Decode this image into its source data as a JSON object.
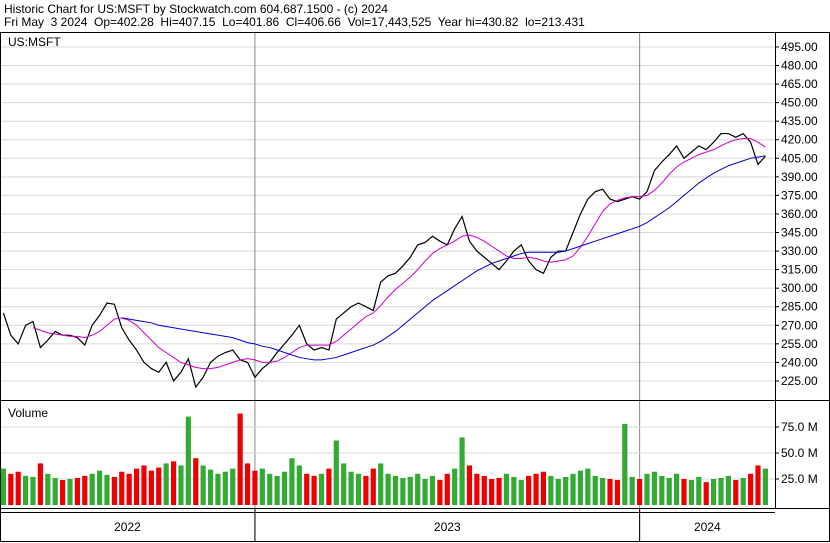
{
  "chart_data": [
    {
      "type": "line",
      "title": "Historic Chart for US:MSFT by Stockwatch.com 604.687.1500 - (c) 2024",
      "subtitle": "Fri May  3 2024  Op=402.28  Hi=407.15  Lo=401.86  Cl=406.66  Vol=17,443,525  Year hi=430.82  lo=213.431",
      "label": "US:MSFT",
      "x": [
        0,
        1,
        2,
        3,
        4,
        5,
        6,
        7,
        8,
        9,
        10,
        11,
        12,
        13,
        14,
        15,
        16,
        17,
        18,
        19,
        20,
        21,
        22,
        23,
        24,
        25,
        26,
        27,
        28,
        29,
        30,
        31,
        32,
        33,
        34,
        35,
        36,
        37,
        38,
        39,
        40,
        41,
        42,
        43,
        44,
        45,
        46,
        47,
        48,
        49,
        50,
        51,
        52,
        53,
        54,
        55,
        56,
        57,
        58,
        59,
        60,
        61,
        62,
        63,
        64,
        65,
        66,
        67,
        68,
        69,
        70,
        71,
        72,
        73,
        74,
        75,
        76,
        77,
        78,
        79,
        80,
        81,
        82,
        83,
        84,
        85,
        86,
        87,
        88,
        89,
        90,
        91,
        92,
        93,
        94,
        95,
        96,
        97,
        98,
        99,
        100,
        101,
        102,
        103
      ],
      "xlim": [
        -0.46,
        104.3
      ],
      "ylim": [
        209.6,
        506.3
      ],
      "yticks": [
        {
          "value": 225,
          "label": "225.00"
        },
        {
          "value": 240,
          "label": "240.00"
        },
        {
          "value": 255,
          "label": "255.00"
        },
        {
          "value": 270,
          "label": "270.00"
        },
        {
          "value": 285,
          "label": "285.00"
        },
        {
          "value": 300,
          "label": "300.00"
        },
        {
          "value": 315,
          "label": "315.00"
        },
        {
          "value": 330,
          "label": "330.00"
        },
        {
          "value": 345,
          "label": "345.00"
        },
        {
          "value": 360,
          "label": "360.00"
        },
        {
          "value": 375,
          "label": "375.00"
        },
        {
          "value": 390,
          "label": "390.00"
        },
        {
          "value": 405,
          "label": "405.00"
        },
        {
          "value": 420,
          "label": "420.00"
        },
        {
          "value": 435,
          "label": "435.00"
        },
        {
          "value": 450,
          "label": "450.00"
        },
        {
          "value": 465,
          "label": "465.00"
        },
        {
          "value": 480,
          "label": "480.00"
        },
        {
          "value": 495,
          "label": "495.00"
        }
      ],
      "grid": true,
      "year_breaks": [
        34,
        86
      ],
      "year_labels": [
        "2022",
        "2023",
        "2024"
      ],
      "series": [
        {
          "color": "#000000",
          "values": [
            280,
            262,
            255,
            270,
            273,
            252,
            258,
            265,
            262,
            262,
            260,
            254,
            270,
            278,
            288,
            287,
            268,
            258,
            250,
            240,
            235,
            232,
            240,
            225,
            232,
            243,
            220,
            228,
            240,
            245,
            248,
            250,
            242,
            240,
            228,
            235,
            240,
            248,
            255,
            262,
            270,
            255,
            250,
            252,
            250,
            275,
            280,
            285,
            288,
            285,
            282,
            305,
            310,
            312,
            318,
            325,
            335,
            337,
            342,
            338,
            335,
            348,
            358,
            338,
            330,
            325,
            320,
            315,
            322,
            330,
            335,
            322,
            315,
            312,
            325,
            330,
            330,
            345,
            360,
            372,
            378,
            380,
            372,
            370,
            372,
            374,
            372,
            378,
            395,
            402,
            408,
            415,
            405,
            410,
            415,
            412,
            418,
            425,
            425,
            422,
            425,
            418,
            400,
            406.66
          ]
        },
        {
          "color": "#cc00cc",
          "values": [
            null,
            null,
            null,
            null,
            268,
            266,
            264,
            263,
            262,
            261,
            261,
            260,
            262,
            265,
            270,
            275,
            276,
            274,
            270,
            264,
            258,
            252,
            248,
            244,
            240,
            238,
            236,
            235,
            235,
            236,
            238,
            240,
            242,
            243,
            242,
            240,
            240,
            241,
            244,
            248,
            252,
            254,
            254,
            254,
            254,
            257,
            262,
            267,
            272,
            277,
            280,
            286,
            293,
            299,
            304,
            309,
            315,
            322,
            328,
            332,
            335,
            338,
            342,
            343,
            341,
            338,
            334,
            330,
            326,
            324,
            324,
            325,
            324,
            322,
            321,
            322,
            323,
            326,
            333,
            342,
            352,
            362,
            368,
            371,
            373,
            374,
            374,
            375,
            379,
            385,
            392,
            398,
            402,
            405,
            408,
            410,
            412,
            415,
            418,
            420,
            421,
            421,
            418,
            414
          ]
        },
        {
          "color": "#0000cc",
          "values": [
            null,
            null,
            null,
            null,
            null,
            null,
            null,
            null,
            null,
            null,
            null,
            null,
            null,
            null,
            null,
            null,
            276,
            275,
            274,
            273,
            272,
            270,
            269,
            268,
            267,
            266,
            265,
            264,
            263,
            262,
            261,
            260,
            258,
            256,
            255,
            253,
            252,
            250,
            248,
            246,
            244,
            243,
            242,
            242,
            243,
            244,
            246,
            248,
            250,
            252,
            254,
            257,
            261,
            265,
            270,
            275,
            280,
            285,
            290,
            294,
            298,
            302,
            306,
            310,
            314,
            317,
            320,
            322,
            324,
            326,
            328,
            329,
            329,
            329,
            329,
            329,
            330,
            332,
            334,
            336,
            338,
            340,
            342,
            344,
            346,
            348,
            350,
            353,
            357,
            361,
            365,
            370,
            375,
            380,
            385,
            389,
            393,
            396,
            399,
            401,
            403,
            405,
            406,
            407
          ]
        }
      ]
    },
    {
      "type": "bar",
      "label": "Volume",
      "x": [
        0,
        1,
        2,
        3,
        4,
        5,
        6,
        7,
        8,
        9,
        10,
        11,
        12,
        13,
        14,
        15,
        16,
        17,
        18,
        19,
        20,
        21,
        22,
        23,
        24,
        25,
        26,
        27,
        28,
        29,
        30,
        31,
        32,
        33,
        34,
        35,
        36,
        37,
        38,
        39,
        40,
        41,
        42,
        43,
        44,
        45,
        46,
        47,
        48,
        49,
        50,
        51,
        52,
        53,
        54,
        55,
        56,
        57,
        58,
        59,
        60,
        61,
        62,
        63,
        64,
        65,
        66,
        67,
        68,
        69,
        70,
        71,
        72,
        73,
        74,
        75,
        76,
        77,
        78,
        79,
        80,
        81,
        82,
        83,
        84,
        85,
        86,
        87,
        88,
        89,
        90,
        91,
        92,
        93,
        94,
        95,
        96,
        97,
        98,
        99,
        100,
        101,
        102,
        103
      ],
      "xlim": [
        -0.46,
        104.3
      ],
      "ylim": [
        0,
        100
      ],
      "yticks": [
        {
          "value": 25,
          "label": "25.0 M"
        },
        {
          "value": 50,
          "label": "50.0 M"
        },
        {
          "value": 75,
          "label": "75.0 M"
        }
      ],
      "grid": true,
      "up_color": "#33aa33",
      "down_color": "#ee0000",
      "values": [
        35,
        30,
        32,
        28,
        27,
        40,
        30,
        26,
        24,
        25,
        26,
        28,
        30,
        33,
        29,
        27,
        32,
        30,
        35,
        38,
        33,
        36,
        40,
        42,
        38,
        85,
        45,
        38,
        34,
        30,
        32,
        35,
        88,
        40,
        33,
        35,
        30,
        28,
        32,
        45,
        38,
        30,
        28,
        30,
        35,
        62,
        40,
        32,
        30,
        28,
        35,
        40,
        30,
        28,
        26,
        27,
        30,
        25,
        28,
        24,
        30,
        35,
        65,
        38,
        30,
        28,
        25,
        26,
        30,
        27,
        24,
        28,
        30,
        32,
        28,
        25,
        27,
        30,
        33,
        35,
        28,
        26,
        25,
        24,
        78,
        27,
        25,
        30,
        32,
        28,
        26,
        30,
        25,
        24,
        27,
        22,
        25,
        26,
        28,
        24,
        26,
        30,
        38,
        35
      ]
    }
  ]
}
